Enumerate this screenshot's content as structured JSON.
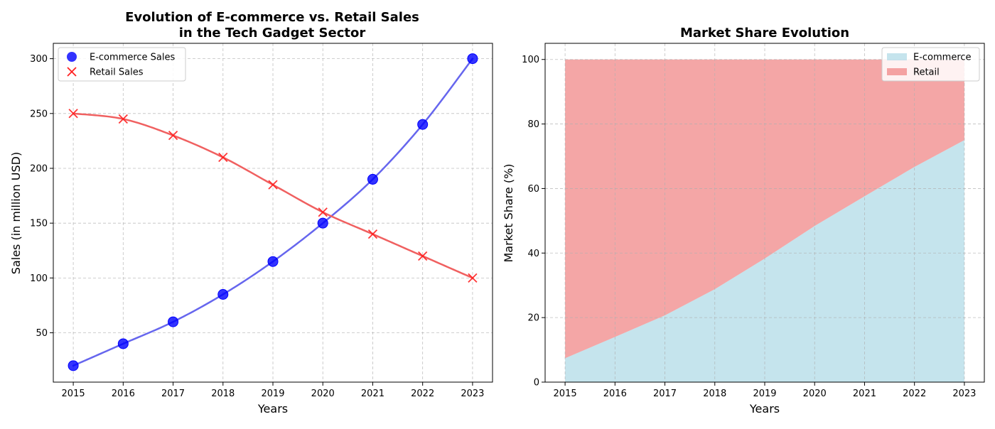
{
  "chart_data": [
    {
      "type": "line",
      "title_line1": "Evolution of E-commerce vs. Retail Sales",
      "title_line2": "in the Tech Gadget Sector",
      "xlabel": "Years",
      "ylabel": "Sales (in million USD)",
      "x": [
        2015,
        2016,
        2017,
        2018,
        2019,
        2020,
        2021,
        2022,
        2023
      ],
      "xlim": [
        2014.6,
        2023.4
      ],
      "ylim": [
        5,
        314
      ],
      "yticks": [
        50,
        100,
        150,
        200,
        250,
        300
      ],
      "grid": true,
      "legend_position": "upper-left",
      "series": [
        {
          "name": "E-commerce Sales",
          "marker": "circle",
          "color": "#0000ff",
          "line_color": "#6666ee",
          "values": [
            20,
            40,
            60,
            85,
            115,
            150,
            190,
            240,
            300
          ]
        },
        {
          "name": "Retail Sales",
          "marker": "x",
          "color": "#ff2020",
          "line_color": "#f06060",
          "values": [
            250,
            245,
            230,
            210,
            185,
            160,
            140,
            120,
            100
          ]
        }
      ]
    },
    {
      "type": "area",
      "stacked": true,
      "title": "Market Share Evolution",
      "xlabel": "Years",
      "ylabel": "Market Share (%)",
      "x": [
        2015,
        2016,
        2017,
        2018,
        2019,
        2020,
        2021,
        2022,
        2023
      ],
      "xlim": [
        2014.6,
        2023.4
      ],
      "ylim": [
        0,
        105
      ],
      "yticks": [
        0,
        20,
        40,
        60,
        80,
        100
      ],
      "grid": true,
      "legend_position": "upper-right",
      "series": [
        {
          "name": "E-commerce",
          "color": "#add8e6",
          "values": [
            7.4,
            14.0,
            20.7,
            28.8,
            38.3,
            48.4,
            57.6,
            66.7,
            75.0
          ]
        },
        {
          "name": "Retail",
          "color": "#f08080",
          "values": [
            92.6,
            86.0,
            79.3,
            71.2,
            61.7,
            51.6,
            42.4,
            33.3,
            25.0
          ]
        }
      ]
    }
  ]
}
